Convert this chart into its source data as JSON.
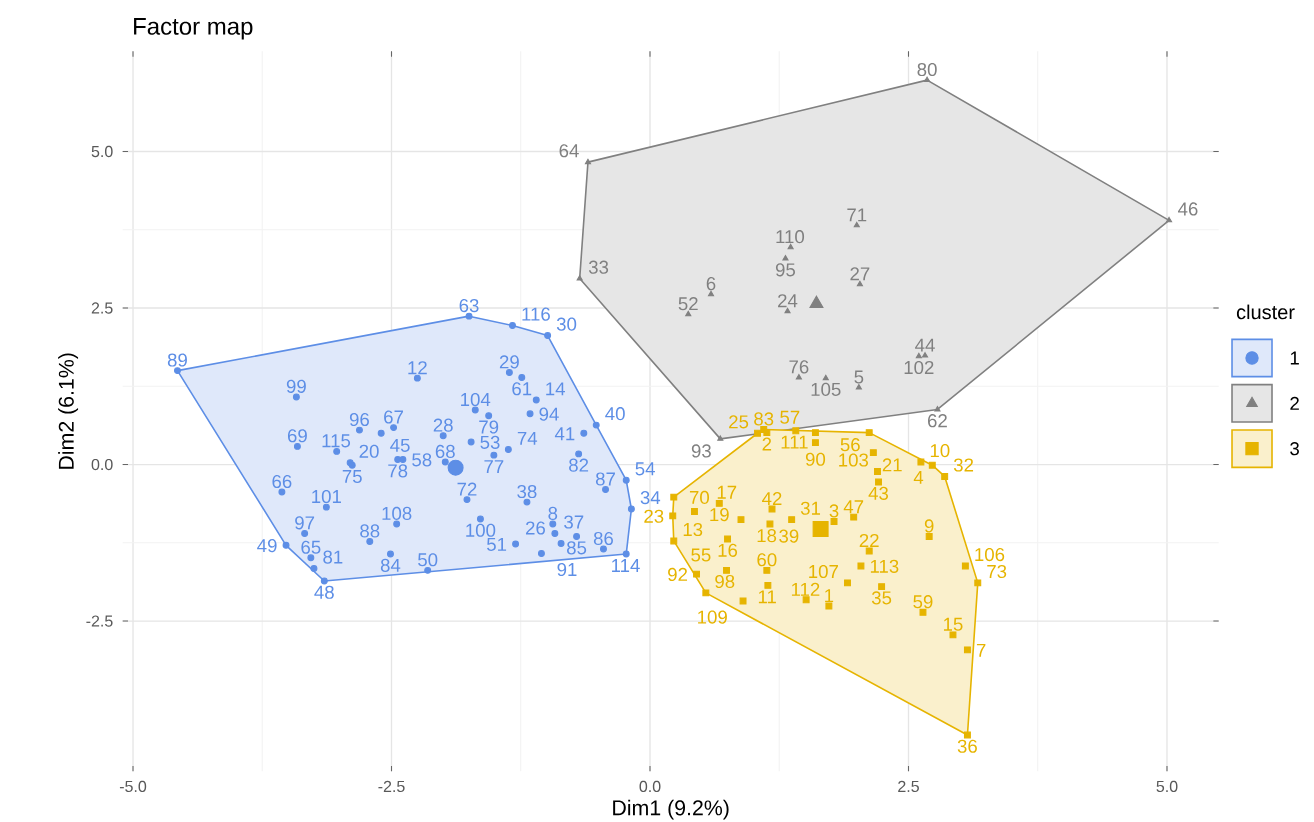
{
  "chart_data": {
    "type": "scatter",
    "title": "Factor map",
    "xlabel": "Dim1 (9.2%)",
    "ylabel": "Dim2 (6.1%)",
    "legend_title": "cluster",
    "legend": "right",
    "grid": true,
    "xlim": [
      -5.1,
      5.5
    ],
    "ylim": [
      -4.9,
      6.6
    ],
    "xticks": [
      {
        "value": -5,
        "label": "-5.0"
      },
      {
        "value": -2.5,
        "label": "-2.5"
      },
      {
        "value": 0,
        "label": "0.0"
      },
      {
        "value": 2.5,
        "label": "2.5"
      },
      {
        "value": 5,
        "label": "5.0"
      }
    ],
    "yticks": [
      {
        "value": -2.5,
        "label": "-2.5"
      },
      {
        "value": 0,
        "label": "0.0"
      },
      {
        "value": 2.5,
        "label": "2.5"
      },
      {
        "value": 5,
        "label": "5.0"
      }
    ],
    "series": [
      {
        "type": "area",
        "color": "#5d8ee6",
        "x": [
          -4.57,
          -1.75,
          -1.33,
          -0.99,
          -0.52,
          -0.23,
          -0.18,
          -0.23,
          -3.15,
          -3.52
        ],
        "values": [
          1.5,
          2.37,
          2.22,
          2.06,
          0.63,
          -0.25,
          -0.71,
          -1.43,
          -1.86,
          -1.29
        ]
      },
      {
        "type": "area",
        "color": "#808080",
        "x": [
          -0.6,
          2.68,
          5.02,
          2.78,
          0.68,
          -0.68
        ],
        "values": [
          4.83,
          6.14,
          3.9,
          0.88,
          0.41,
          2.97
        ]
      },
      {
        "type": "area",
        "color": "#e6b400",
        "x": [
          1.04,
          1.1,
          2.12,
          2.73,
          2.85,
          3.17,
          3.07,
          0.54,
          0.23,
          0.22,
          0.23
        ],
        "values": [
          0.5,
          0.56,
          0.51,
          -0.01,
          -0.19,
          -1.89,
          -4.32,
          -2.05,
          -1.22,
          -0.82,
          -0.52
        ]
      },
      {
        "name": "1",
        "color": "#5d8ee6",
        "marker": "circle",
        "x": [
          -4.57,
          -3.42,
          -3.41,
          -3.03,
          -2.9,
          -2.88,
          -2.81,
          -2.6,
          -2.48,
          -2.25,
          -2.44,
          -2.39,
          -3.56,
          -3.13,
          -3.34,
          -3.52,
          -3.28,
          -3.25,
          -3.15,
          -2.71,
          -2.45,
          -2.51,
          -2.15,
          -1.77,
          -1.64,
          -1.98,
          -2.0,
          -1.69,
          -1.56,
          -1.36,
          -1.24,
          -1.1,
          -1.73,
          -1.51,
          -1.37,
          -1.16,
          -0.64,
          -0.52,
          -0.69,
          -0.43,
          -0.23,
          -0.18,
          -0.45,
          -0.23,
          -1.19,
          -0.94,
          -0.92,
          -0.86,
          -0.71,
          -1.05,
          -1.3,
          -1.75,
          -1.33,
          -0.99
        ],
        "values": [
          1.5,
          1.08,
          0.29,
          0.21,
          0.03,
          -0.01,
          0.55,
          0.5,
          0.59,
          1.38,
          0.08,
          0.08,
          -0.44,
          -0.68,
          -1.1,
          -1.29,
          -1.49,
          -1.66,
          -1.86,
          -1.23,
          -0.95,
          -1.43,
          -1.69,
          -0.56,
          -0.87,
          0.04,
          0.46,
          0.87,
          0.78,
          1.47,
          1.39,
          1.03,
          0.36,
          0.15,
          0.24,
          0.81,
          0.5,
          0.63,
          0.17,
          -0.4,
          -0.25,
          -0.71,
          -1.35,
          -1.43,
          -0.6,
          -0.95,
          -1.1,
          -1.26,
          -1.15,
          -1.42,
          -1.27,
          2.37,
          2.22,
          2.06
        ]
      },
      {
        "name": "2",
        "color": "#808080",
        "marker": "triangle",
        "x": [
          -0.6,
          2.68,
          5.02,
          2.78,
          0.68,
          -0.68,
          0.37,
          0.59,
          1.31,
          1.36,
          2.0,
          1.33,
          2.03,
          1.44,
          1.7,
          2.02,
          2.66,
          2.6
        ],
        "values": [
          4.83,
          6.14,
          3.9,
          0.88,
          0.41,
          2.97,
          2.4,
          2.72,
          3.29,
          3.47,
          3.82,
          2.45,
          2.88,
          1.39,
          1.38,
          1.23,
          1.74,
          1.73
        ]
      },
      {
        "name": "3",
        "color": "#e6b400",
        "marker": "square",
        "x": [
          1.1,
          1.41,
          1.13,
          1.04,
          2.12,
          2.16,
          1.6,
          2.62,
          2.73,
          2.85,
          2.2,
          2.21,
          0.23,
          0.22,
          0.23,
          0.45,
          0.54,
          0.67,
          0.43,
          0.88,
          0.75,
          1.18,
          1.16,
          1.37,
          1.78,
          1.97,
          2.12,
          2.04,
          1.13,
          0.74,
          1.14,
          0.9,
          1.51,
          1.73,
          1.91,
          2.24,
          2.7,
          3.05,
          3.17,
          2.64,
          2.93,
          3.07,
          3.07,
          1.6
        ],
        "values": [
          0.56,
          0.54,
          0.51,
          0.5,
          0.51,
          0.19,
          0.35,
          0.04,
          -0.01,
          -0.19,
          -0.11,
          -0.28,
          -0.52,
          -0.82,
          -1.22,
          -1.75,
          -2.05,
          -0.62,
          -0.75,
          -0.88,
          -1.19,
          -0.71,
          -0.95,
          -0.88,
          -0.91,
          -0.84,
          -1.38,
          -1.62,
          -1.69,
          -1.69,
          -1.93,
          -2.18,
          -2.16,
          -2.26,
          -1.89,
          -1.95,
          -1.15,
          -1.62,
          -1.89,
          -2.36,
          -2.72,
          -2.96,
          -4.32,
          0.51
        ]
      },
      {
        "type": "scatter",
        "color": "#5d8ee6",
        "marker": "circle",
        "x": [
          -1.88
        ],
        "values": [
          -0.05
        ]
      },
      {
        "type": "scatter",
        "color": "#808080",
        "marker": "triangle",
        "x": [
          1.61
        ],
        "values": [
          2.57
        ]
      },
      {
        "type": "scatter",
        "color": "#e6b400",
        "marker": "square",
        "x": [
          1.65
        ],
        "values": [
          -1.03
        ]
      }
    ],
    "annotations": [
      {
        "text": "89",
        "x": -4.57,
        "y": 1.5
      },
      {
        "text": "99",
        "x": -3.42,
        "y": 1.08
      },
      {
        "text": "69",
        "x": -3.41,
        "y": 0.29
      },
      {
        "text": "115",
        "x": -3.03,
        "y": 0.21
      },
      {
        "text": "20",
        "x": -2.9,
        "y": 0.03
      },
      {
        "text": "75",
        "x": -2.88,
        "y": -0.01
      },
      {
        "text": "96",
        "x": -2.81,
        "y": 0.55
      },
      {
        "text": "45",
        "x": -2.6,
        "y": 0.5
      },
      {
        "text": "67",
        "x": -2.48,
        "y": 0.59
      },
      {
        "text": "12",
        "x": -2.25,
        "y": 1.38
      },
      {
        "text": "78",
        "x": -2.44,
        "y": 0.08
      },
      {
        "text": "58",
        "x": -2.39,
        "y": 0.08
      },
      {
        "text": "66",
        "x": -3.56,
        "y": -0.44
      },
      {
        "text": "101",
        "x": -3.13,
        "y": -0.68
      },
      {
        "text": "97",
        "x": -3.34,
        "y": -1.1
      },
      {
        "text": "49",
        "x": -3.52,
        "y": -1.29
      },
      {
        "text": "65",
        "x": -3.28,
        "y": -1.49
      },
      {
        "text": "81",
        "x": -3.25,
        "y": -1.66
      },
      {
        "text": "48",
        "x": -3.15,
        "y": -1.86
      },
      {
        "text": "88",
        "x": -2.71,
        "y": -1.23
      },
      {
        "text": "108",
        "x": -2.45,
        "y": -0.95
      },
      {
        "text": "84",
        "x": -2.51,
        "y": -1.43
      },
      {
        "text": "50",
        "x": -2.15,
        "y": -1.69
      },
      {
        "text": "72",
        "x": -1.77,
        "y": -0.56
      },
      {
        "text": "100",
        "x": -1.64,
        "y": -0.87
      },
      {
        "text": "68",
        "x": -1.98,
        "y": 0.04
      },
      {
        "text": "28",
        "x": -2.0,
        "y": 0.46
      },
      {
        "text": "104",
        "x": -1.69,
        "y": 0.87
      },
      {
        "text": "79",
        "x": -1.56,
        "y": 0.78
      },
      {
        "text": "29",
        "x": -1.36,
        "y": 1.47
      },
      {
        "text": "61",
        "x": -1.24,
        "y": 1.39
      },
      {
        "text": "14",
        "x": -1.1,
        "y": 1.03
      },
      {
        "text": "53",
        "x": -1.73,
        "y": 0.36
      },
      {
        "text": "77",
        "x": -1.51,
        "y": 0.15
      },
      {
        "text": "74",
        "x": -1.37,
        "y": 0.24
      },
      {
        "text": "94",
        "x": -1.16,
        "y": 0.81
      },
      {
        "text": "41",
        "x": -0.64,
        "y": 0.5
      },
      {
        "text": "40",
        "x": -0.52,
        "y": 0.63
      },
      {
        "text": "82",
        "x": -0.69,
        "y": 0.17
      },
      {
        "text": "87",
        "x": -0.43,
        "y": -0.4
      },
      {
        "text": "54",
        "x": -0.23,
        "y": -0.25
      },
      {
        "text": "34",
        "x": -0.18,
        "y": -0.71
      },
      {
        "text": "86",
        "x": -0.45,
        "y": -1.35
      },
      {
        "text": "114",
        "x": -0.23,
        "y": -1.43
      },
      {
        "text": "38",
        "x": -1.19,
        "y": -0.6
      },
      {
        "text": "8",
        "x": -0.94,
        "y": -0.95
      },
      {
        "text": "37",
        "x": -0.92,
        "y": -1.1
      },
      {
        "text": "26",
        "x": -0.86,
        "y": -1.26
      },
      {
        "text": "85",
        "x": -0.71,
        "y": -1.15
      },
      {
        "text": "91",
        "x": -1.05,
        "y": -1.42
      },
      {
        "text": "51",
        "x": -1.3,
        "y": -1.27
      },
      {
        "text": "63",
        "x": -1.75,
        "y": 2.37
      },
      {
        "text": "116",
        "x": -1.33,
        "y": 2.22
      },
      {
        "text": "30",
        "x": -0.99,
        "y": 2.06
      },
      {
        "text": "64",
        "x": -0.6,
        "y": 4.83
      },
      {
        "text": "80",
        "x": 2.68,
        "y": 6.14
      },
      {
        "text": "46",
        "x": 5.02,
        "y": 3.9
      },
      {
        "text": "62",
        "x": 2.78,
        "y": 0.88
      },
      {
        "text": "93",
        "x": 0.68,
        "y": 0.41
      },
      {
        "text": "33",
        "x": -0.68,
        "y": 2.97
      },
      {
        "text": "52",
        "x": 0.37,
        "y": 2.4
      },
      {
        "text": "6",
        "x": 0.59,
        "y": 2.72
      },
      {
        "text": "95",
        "x": 1.31,
        "y": 3.29
      },
      {
        "text": "110",
        "x": 1.36,
        "y": 3.47
      },
      {
        "text": "71",
        "x": 2.0,
        "y": 3.82
      },
      {
        "text": "24",
        "x": 1.33,
        "y": 2.45
      },
      {
        "text": "27",
        "x": 2.03,
        "y": 2.88
      },
      {
        "text": "76",
        "x": 1.44,
        "y": 1.39
      },
      {
        "text": "105",
        "x": 1.7,
        "y": 1.38
      },
      {
        "text": "5",
        "x": 2.02,
        "y": 1.23
      },
      {
        "text": "44",
        "x": 2.66,
        "y": 1.74
      },
      {
        "text": "102",
        "x": 2.6,
        "y": 1.73
      },
      {
        "text": "83",
        "x": 1.1,
        "y": 0.56
      },
      {
        "text": "111",
        "x": 1.41,
        "y": 0.54
      },
      {
        "text": "2",
        "x": 1.13,
        "y": 0.51
      },
      {
        "text": "25",
        "x": 1.04,
        "y": 0.5
      },
      {
        "text": "56",
        "x": 2.12,
        "y": 0.51
      },
      {
        "text": "21",
        "x": 2.16,
        "y": 0.19
      },
      {
        "text": "90",
        "x": 1.6,
        "y": 0.35
      },
      {
        "text": "10",
        "x": 2.62,
        "y": 0.04
      },
      {
        "text": "4",
        "x": 2.73,
        "y": -0.01
      },
      {
        "text": "32",
        "x": 2.85,
        "y": -0.19
      },
      {
        "text": "103",
        "x": 2.2,
        "y": -0.11
      },
      {
        "text": "43",
        "x": 2.21,
        "y": -0.28
      },
      {
        "text": "70",
        "x": 0.23,
        "y": -0.52
      },
      {
        "text": "23",
        "x": 0.22,
        "y": -0.82
      },
      {
        "text": "13",
        "x": 0.23,
        "y": -1.22
      },
      {
        "text": "92",
        "x": 0.45,
        "y": -1.75
      },
      {
        "text": "98",
        "x": 0.54,
        "y": -2.05
      },
      {
        "text": "19",
        "x": 0.67,
        "y": -0.62
      },
      {
        "text": "17",
        "x": 0.43,
        "y": -0.75
      },
      {
        "text": "18",
        "x": 0.88,
        "y": -0.88
      },
      {
        "text": "16",
        "x": 0.75,
        "y": -1.19
      },
      {
        "text": "42",
        "x": 1.18,
        "y": -0.71
      },
      {
        "text": "39",
        "x": 1.16,
        "y": -0.95
      },
      {
        "text": "31",
        "x": 1.37,
        "y": -0.88
      },
      {
        "text": "3",
        "x": 1.78,
        "y": -0.91
      },
      {
        "text": "47",
        "x": 1.97,
        "y": -0.84
      },
      {
        "text": "22",
        "x": 2.12,
        "y": -1.38
      },
      {
        "text": "113",
        "x": 2.04,
        "y": -1.62
      },
      {
        "text": "60",
        "x": 1.13,
        "y": -1.69
      },
      {
        "text": "55",
        "x": 0.74,
        "y": -1.69
      },
      {
        "text": "11",
        "x": 1.14,
        "y": -1.93
      },
      {
        "text": "109",
        "x": 0.9,
        "y": -2.18
      },
      {
        "text": "112",
        "x": 1.51,
        "y": -2.16
      },
      {
        "text": "1",
        "x": 1.73,
        "y": -2.26
      },
      {
        "text": "107",
        "x": 1.91,
        "y": -1.89
      },
      {
        "text": "35",
        "x": 2.24,
        "y": -1.95
      },
      {
        "text": "9",
        "x": 2.7,
        "y": -1.15
      },
      {
        "text": "106",
        "x": 3.05,
        "y": -1.62
      },
      {
        "text": "73",
        "x": 3.17,
        "y": -1.89
      },
      {
        "text": "59",
        "x": 2.64,
        "y": -2.36
      },
      {
        "text": "15",
        "x": 2.93,
        "y": -2.72
      },
      {
        "text": "7",
        "x": 3.07,
        "y": -2.96
      },
      {
        "text": "36",
        "x": 3.07,
        "y": -4.32
      },
      {
        "text": "57",
        "x": 1.6,
        "y": 0.51
      }
    ]
  }
}
